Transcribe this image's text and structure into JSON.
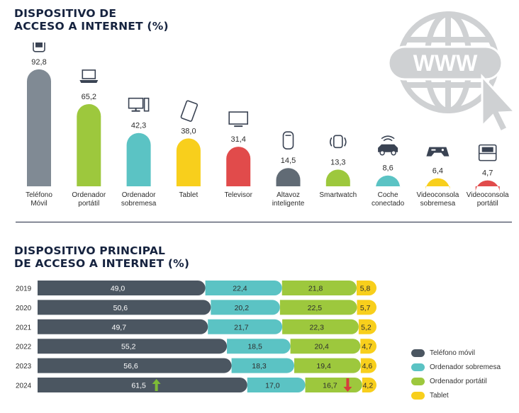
{
  "title1": {
    "line1": "DISPOSITIVO DE",
    "line2": "ACCESO A INTERNET (%)"
  },
  "title2": {
    "line1": "DISPOSITIVO PRINCIPAL",
    "line2": "DE ACCESO A INTERNET (%)"
  },
  "globe_text": "WWW",
  "chart_data": [
    {
      "type": "bar",
      "categories": [
        [
          "Teléfono",
          "Móvil"
        ],
        [
          "Ordenador",
          "portátil"
        ],
        [
          "Ordenador",
          "sobremesa"
        ],
        [
          "Tablet"
        ],
        [
          "Televisor"
        ],
        [
          "Altavoz",
          "inteligente"
        ],
        [
          "Smartwatch"
        ],
        [
          "Coche",
          "conectado"
        ],
        [
          "Videoconsola",
          "sobremesa"
        ],
        [
          "Videoconsola",
          "portátil"
        ]
      ],
      "values": [
        92.8,
        65.2,
        42.3,
        38.0,
        31.4,
        14.5,
        13.3,
        8.6,
        6.4,
        4.7
      ],
      "value_labels": [
        "92,8",
        "65,2",
        "42,3",
        "38,0",
        "31,4",
        "14,5",
        "13,3",
        "8,6",
        "6,4",
        "4,7"
      ],
      "colors": [
        "#808a94",
        "#9dc83d",
        "#5bc3c4",
        "#f8cf1c",
        "#e14b4b",
        "#616b75",
        "#9dc83d",
        "#5bc3c4",
        "#f8cf1c",
        "#e14b4b"
      ],
      "icons": [
        "smartphone-icon",
        "laptop-icon",
        "desktop-icon",
        "tablet-icon",
        "tv-icon",
        "smart-speaker-icon",
        "smartwatch-icon",
        "connected-car-icon",
        "console-controller-icon",
        "handheld-console-icon"
      ],
      "ylim": [
        0,
        100
      ],
      "grid": false
    },
    {
      "type": "bar",
      "stacked": true,
      "orientation": "horizontal",
      "categories": [
        "2019",
        "2020",
        "2021",
        "2022",
        "2023",
        "2024"
      ],
      "series": [
        {
          "name": "Teléfono móvil",
          "color": "#4b5661",
          "values": [
            49.0,
            50.6,
            49.7,
            55.2,
            56.6,
            61.5
          ],
          "labels": [
            "49,0",
            "50,6",
            "49,7",
            "55,2",
            "56,6",
            "61,5"
          ]
        },
        {
          "name": "Ordenador sobremesa",
          "color": "#5bc3c4",
          "values": [
            22.4,
            20.2,
            21.7,
            18.5,
            18.3,
            17.0
          ],
          "labels": [
            "22,4",
            "20,2",
            "21,7",
            "18,5",
            "18,3",
            "17,0"
          ]
        },
        {
          "name": "Ordenador portátil",
          "color": "#9dc83d",
          "values": [
            21.8,
            22.5,
            22.3,
            20.4,
            19.4,
            16.7
          ],
          "labels": [
            "21,8",
            "22,5",
            "22,3",
            "20,4",
            "19,4",
            "16,7"
          ]
        },
        {
          "name": "Tablet",
          "color": "#f8cf1c",
          "values": [
            5.8,
            5.7,
            5.2,
            4.7,
            4.6,
            4.2
          ],
          "labels": [
            "5,8",
            "5,7",
            "5,2",
            "4,7",
            "4,6",
            "4,2"
          ]
        }
      ],
      "trend_markers": [
        {
          "category": "2024",
          "series": "Teléfono móvil",
          "direction": "up",
          "color": "#7dbb37",
          "icon": "arrow-up-icon"
        },
        {
          "category": "2024",
          "series": "Ordenador portátil",
          "direction": "down",
          "color": "#d63d3d",
          "icon": "arrow-down-icon"
        }
      ],
      "legend_position": "right",
      "grid": false
    }
  ]
}
